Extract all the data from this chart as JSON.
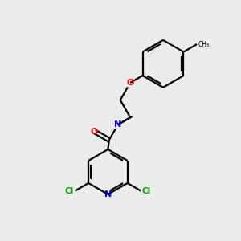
{
  "bg_color": "#ebebeb",
  "bond_color": "#000000",
  "N_color": "#0000cc",
  "O_color": "#ff0000",
  "Cl_color": "#00aa00",
  "line_width": 1.6,
  "figsize": [
    3.0,
    3.0
  ],
  "dpi": 100,
  "xlim": [
    0,
    10
  ],
  "ylim": [
    0,
    10
  ]
}
